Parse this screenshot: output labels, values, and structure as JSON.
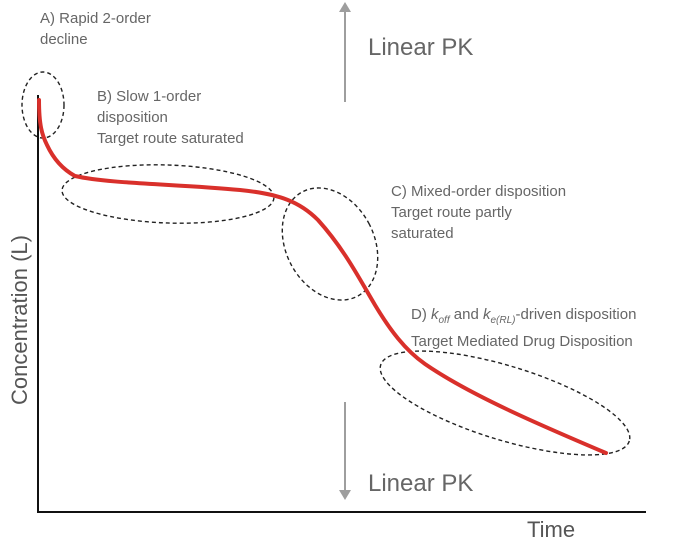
{
  "labels": {
    "a": {
      "line1": "A) Rapid 2-order",
      "line2": "decline"
    },
    "b": {
      "line1": "B) Slow 1-order",
      "line2": "disposition",
      "line3": "Target route saturated"
    },
    "c": {
      "line1": "C) Mixed-order disposition",
      "line2": "Target route partly",
      "line3": "saturated"
    },
    "d": {
      "prefix": "D) ",
      "k1": "k",
      "k1_sub": "off",
      "mid": " and ",
      "k2": "k",
      "k2_sub": "e(RL)",
      "suffix": "-driven disposition",
      "line2": "Target Mediated Drug Disposition"
    }
  },
  "linear_pk_top": "Linear PK",
  "linear_pk_bottom": "Linear PK",
  "axes": {
    "x": "Time",
    "y": "Concentration (L)"
  },
  "colors": {
    "curve": "#d9302b",
    "axis": "#111111",
    "arrow": "#9e9e9e",
    "ellipse": "#222222"
  }
}
